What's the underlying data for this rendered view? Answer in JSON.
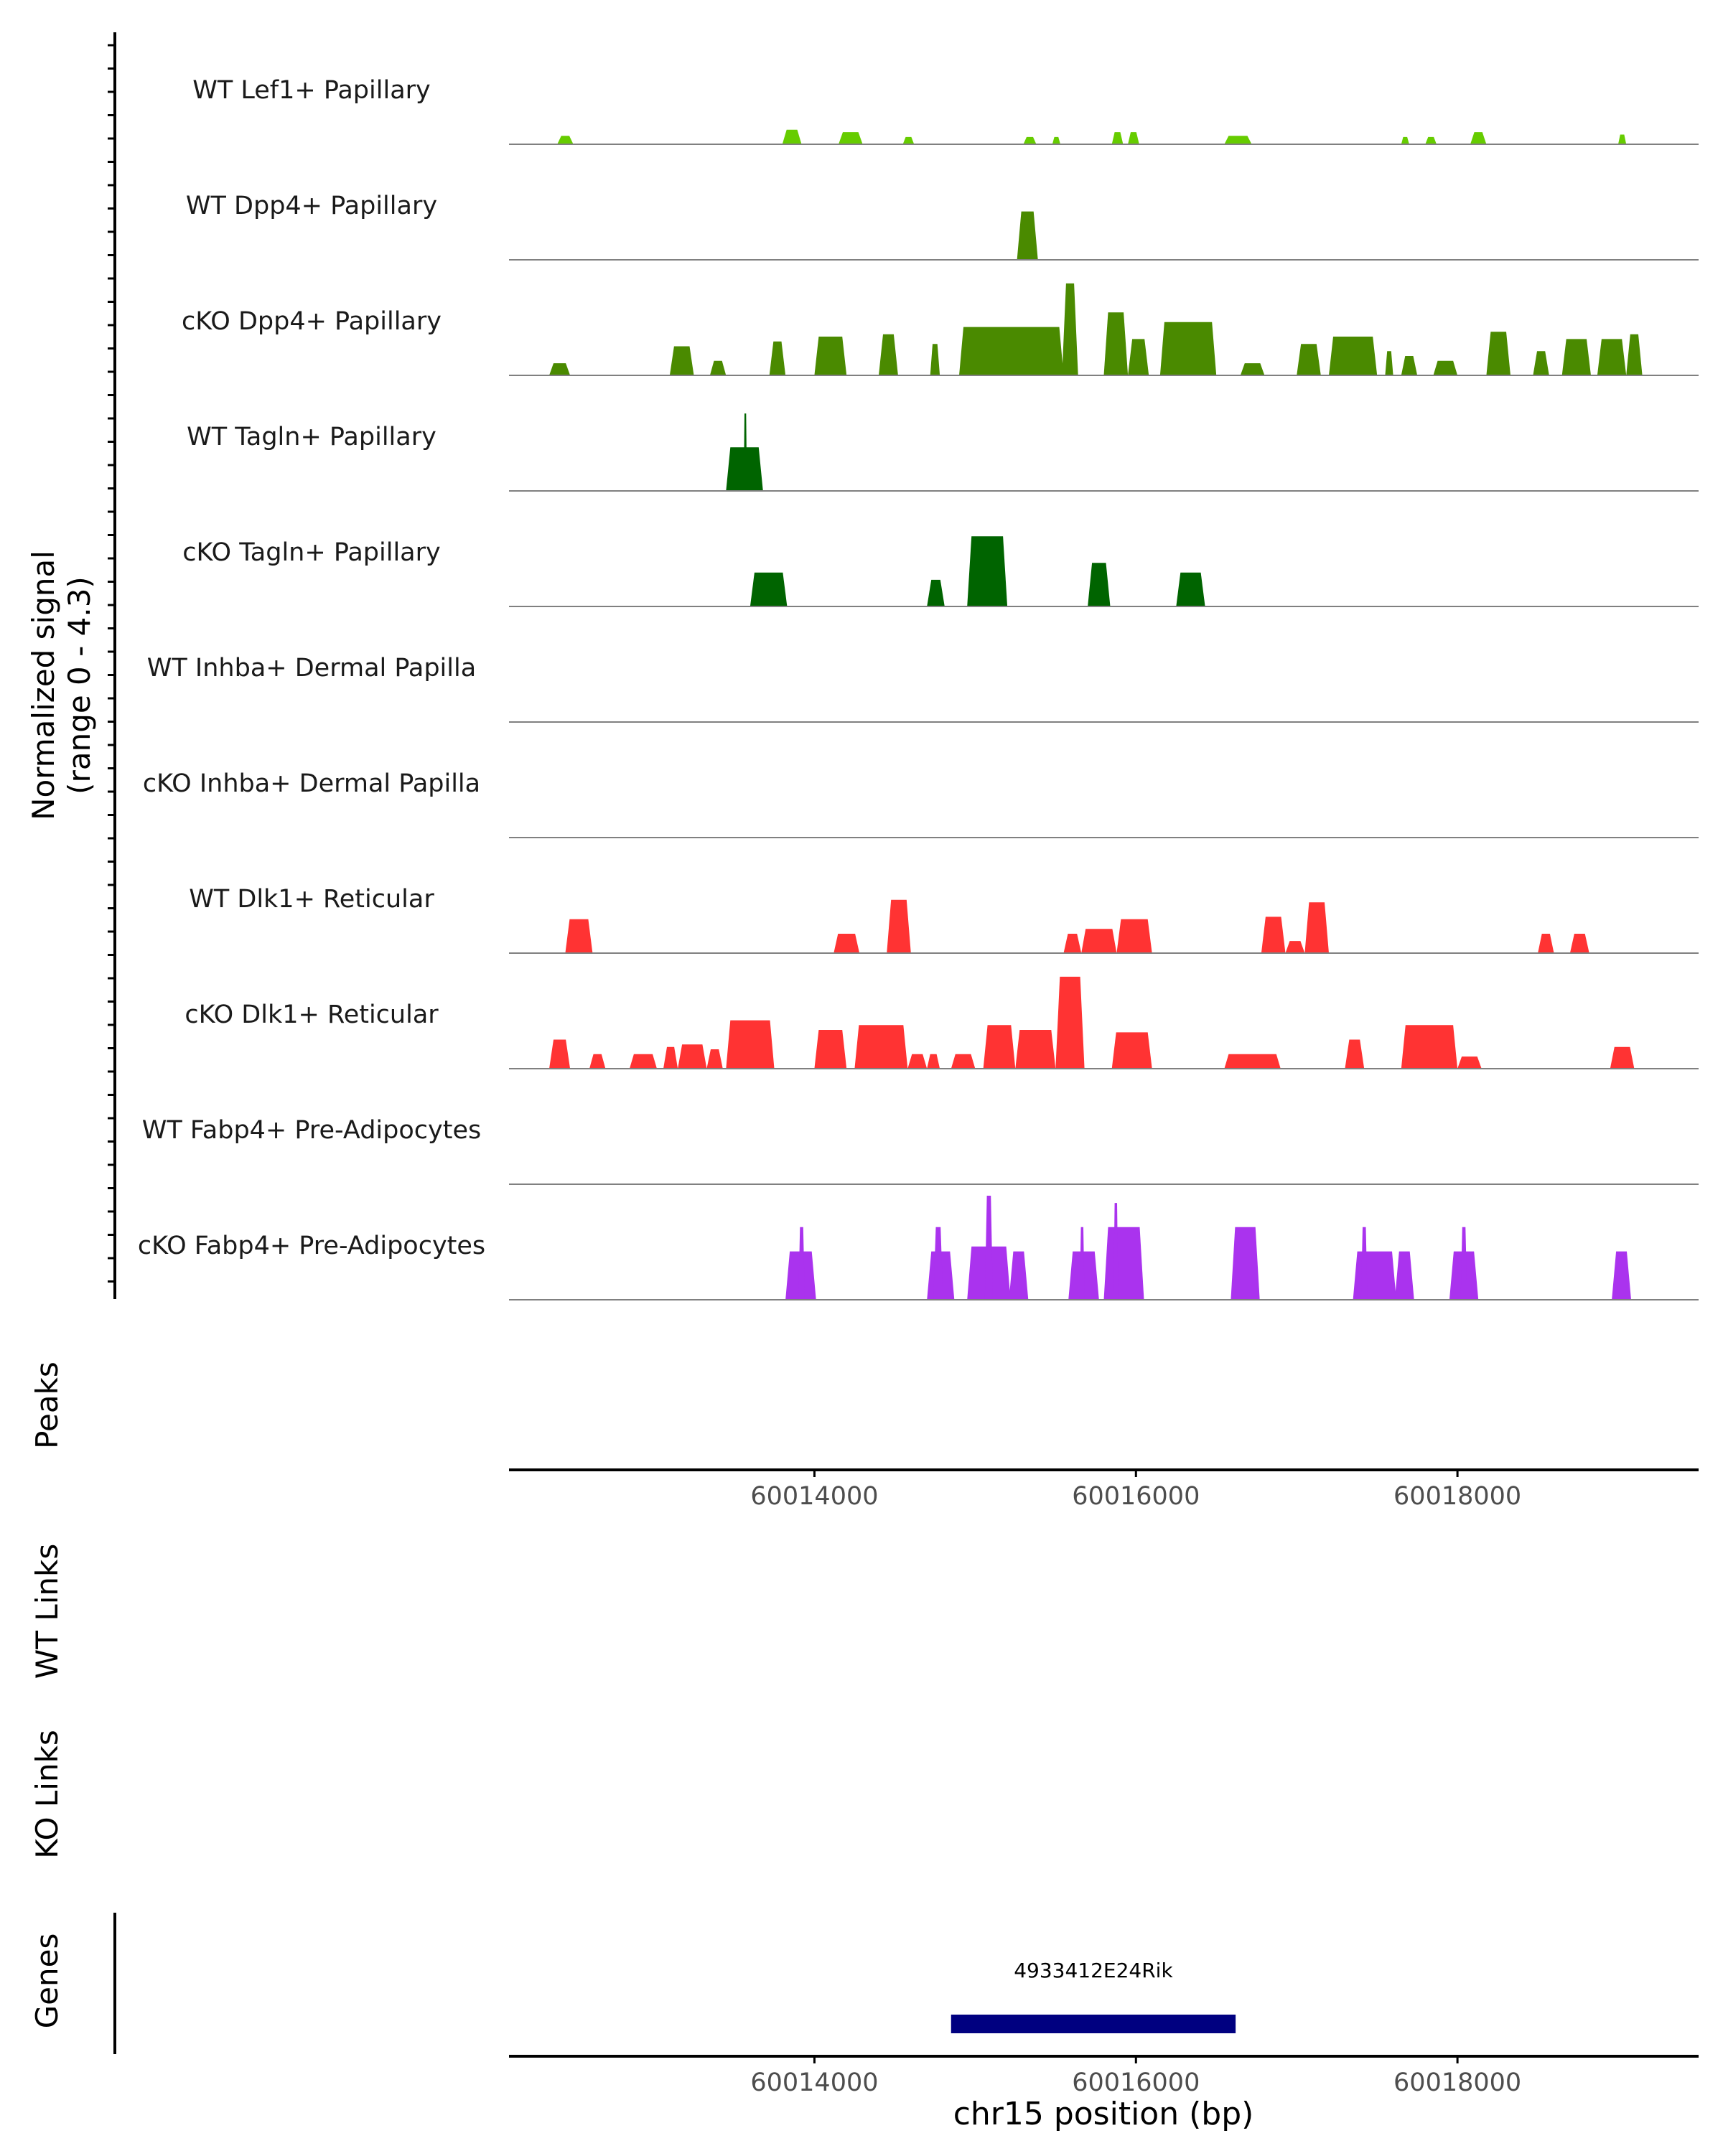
{
  "chart_data": {
    "type": "area",
    "title": "",
    "chromosome": "chr15",
    "xlabel": "chr15 position (bp)",
    "xlim": [
      60012100,
      60019500
    ],
    "x_ticks": [
      60014000,
      60016000,
      60018000
    ],
    "x_tick_labels": [
      "60014000",
      "60016000",
      "60018000"
    ],
    "ylabel_line1": "Normalized signal",
    "ylabel_line2": "(range 0 - 4.3)",
    "ylim": [
      0,
      4.3
    ],
    "colors": {
      "lef1": "#66cc00",
      "dpp4": "#4a8a00",
      "tagln": "#006400",
      "dlk1": "#ff3333",
      "fabp4": "#aa33ee",
      "gene": "#000080",
      "axis": "#000000",
      "baseline": "#808080"
    },
    "tracks": [
      {
        "name": "WT Lef1+ Papillary",
        "color": "lef1",
        "peaks": [
          [
            60012400,
            60012500,
            0.35
          ],
          [
            60013800,
            60013920,
            0.6
          ],
          [
            60014150,
            60014300,
            0.5
          ],
          [
            60014550,
            60014620,
            0.3
          ],
          [
            60015300,
            60015380,
            0.3
          ],
          [
            60015480,
            60015530,
            0.3
          ],
          [
            60015850,
            60015920,
            0.5
          ],
          [
            60015950,
            60016020,
            0.5
          ],
          [
            60016550,
            60016720,
            0.35
          ],
          [
            60017650,
            60017700,
            0.3
          ],
          [
            60017800,
            60017870,
            0.3
          ],
          [
            60018080,
            60018180,
            0.5
          ],
          [
            60019000,
            60019050,
            0.4
          ]
        ]
      },
      {
        "name": "WT Dpp4+ Papillary",
        "color": "dpp4",
        "peaks": [
          [
            60015260,
            60015390,
            2.0
          ]
        ]
      },
      {
        "name": "cKO Dpp4+ Papillary",
        "color": "dpp4",
        "peaks": [
          [
            60012350,
            60012480,
            0.5
          ],
          [
            60013100,
            60013250,
            1.2
          ],
          [
            60013350,
            60013450,
            0.6
          ],
          [
            60013720,
            60013820,
            1.4
          ],
          [
            60014000,
            60014200,
            1.6
          ],
          [
            60014400,
            60014520,
            1.7
          ],
          [
            60014720,
            60014780,
            1.3
          ],
          [
            60014900,
            60015550,
            2.0
          ],
          [
            60015540,
            60015640,
            3.8
          ],
          [
            60015800,
            60015950,
            2.6
          ],
          [
            60015950,
            60016080,
            1.5
          ],
          [
            60016150,
            60016500,
            2.2
          ],
          [
            60016650,
            60016800,
            0.5
          ],
          [
            60017000,
            60017150,
            1.3
          ],
          [
            60017200,
            60017500,
            1.6
          ],
          [
            60017550,
            60017600,
            1.0
          ],
          [
            60017650,
            60017750,
            0.8
          ],
          [
            60017850,
            60018000,
            0.6
          ],
          [
            60018180,
            60018330,
            1.8
          ],
          [
            60018470,
            60018570,
            1.0
          ],
          [
            60018650,
            60018830,
            1.5
          ],
          [
            60018870,
            60019050,
            1.5
          ],
          [
            60019050,
            60019150,
            1.7
          ]
        ]
      },
      {
        "name": "WT Tagln+ Papillary",
        "color": "tagln",
        "peaks": [
          [
            60013450,
            60013680,
            1.8
          ],
          [
            60013560,
            60013580,
            3.2
          ]
        ]
      },
      {
        "name": "cKO Tagln+ Papillary",
        "color": "tagln",
        "peaks": [
          [
            60013600,
            60013830,
            1.4
          ],
          [
            60014700,
            60014810,
            1.1
          ],
          [
            60014950,
            60015200,
            2.9
          ],
          [
            60015700,
            60015840,
            1.8
          ],
          [
            60016250,
            60016430,
            1.4
          ]
        ]
      },
      {
        "name": "WT Inhba+ Dermal Papilla",
        "color": "none",
        "peaks": []
      },
      {
        "name": "cKO Inhba+ Dermal Papilla",
        "color": "none",
        "peaks": []
      },
      {
        "name": "WT Dlk1+ Reticular",
        "color": "dlk1",
        "peaks": [
          [
            60012450,
            60012620,
            1.4
          ],
          [
            60014120,
            60014280,
            0.8
          ],
          [
            60014450,
            60014600,
            2.2
          ],
          [
            60015550,
            60015660,
            0.8
          ],
          [
            60015660,
            60015880,
            1.0
          ],
          [
            60015880,
            60016100,
            1.4
          ],
          [
            60016780,
            60016930,
            1.5
          ],
          [
            60016930,
            60017050,
            0.5
          ],
          [
            60017050,
            60017200,
            2.1
          ],
          [
            60018500,
            60018600,
            0.8
          ],
          [
            60018700,
            60018820,
            0.8
          ]
        ]
      },
      {
        "name": "cKO Dlk1+ Reticular",
        "color": "dlk1",
        "peaks": [
          [
            60012350,
            60012480,
            1.2
          ],
          [
            60012600,
            60012700,
            0.6
          ],
          [
            60012850,
            60013020,
            0.6
          ],
          [
            60013060,
            60013150,
            0.9
          ],
          [
            60013150,
            60013330,
            1.0
          ],
          [
            60013330,
            60013430,
            0.8
          ],
          [
            60013450,
            60013750,
            2.0
          ],
          [
            60014000,
            60014200,
            1.6
          ],
          [
            60014250,
            60014580,
            1.8
          ],
          [
            60014580,
            60014700,
            0.6
          ],
          [
            60014700,
            60014780,
            0.6
          ],
          [
            60014850,
            60015000,
            0.6
          ],
          [
            60015050,
            60015250,
            1.8
          ],
          [
            60015250,
            60015500,
            1.6
          ],
          [
            60015500,
            60015680,
            3.8
          ],
          [
            60015850,
            60016100,
            1.5
          ],
          [
            60016550,
            60016900,
            0.6
          ],
          [
            60017300,
            60017420,
            1.2
          ],
          [
            60017650,
            60018000,
            1.8
          ],
          [
            60018000,
            60018150,
            0.5
          ],
          [
            60018950,
            60019100,
            0.9
          ]
        ]
      },
      {
        "name": "WT Fabp4+ Pre-Adipocytes",
        "color": "none",
        "peaks": []
      },
      {
        "name": "cKO Fabp4+ Pre-Adipocytes",
        "color": "fabp4",
        "peaks": [
          [
            60013820,
            60014010,
            2.0
          ],
          [
            60013900,
            60013940,
            3.0
          ],
          [
            60014700,
            60014870,
            2.0
          ],
          [
            60014740,
            60014800,
            3.0
          ],
          [
            60014950,
            60015220,
            2.2
          ],
          [
            60015060,
            60015110,
            4.3
          ],
          [
            60015210,
            60015330,
            2.0
          ],
          [
            60015580,
            60015770,
            2.0
          ],
          [
            60015650,
            60015680,
            3.0
          ],
          [
            60015800,
            60016050,
            3.0
          ],
          [
            60015860,
            60015890,
            4.0
          ],
          [
            60016590,
            60016770,
            3.0
          ],
          [
            60017350,
            60017620,
            2.0
          ],
          [
            60017400,
            60017440,
            3.0
          ],
          [
            60017610,
            60017730,
            2.0
          ],
          [
            60017950,
            60018130,
            2.0
          ],
          [
            60018020,
            60018060,
            3.0
          ],
          [
            60018960,
            60019080,
            2.0
          ]
        ]
      }
    ],
    "panels": {
      "peaks": "Peaks",
      "wt_links": "WT Links",
      "ko_links": "KO Links",
      "genes": "Genes"
    },
    "genes": [
      {
        "name": "4933412E24Rik",
        "start": 60014850,
        "end": 60016620
      }
    ]
  }
}
